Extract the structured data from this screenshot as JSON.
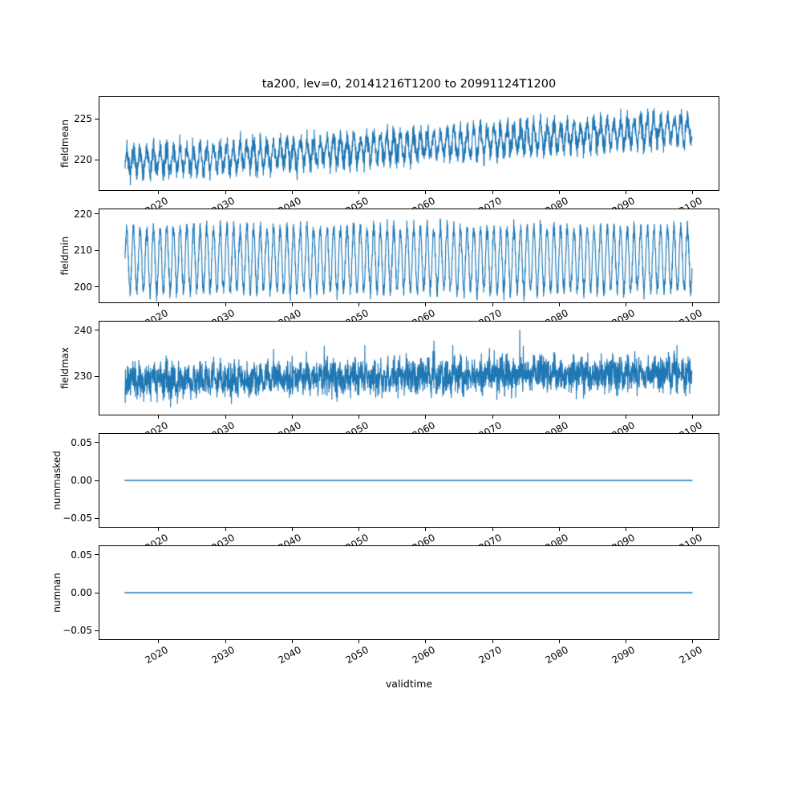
{
  "title": "ta200, lev=0, 20141216T1200 to 20991124T1200",
  "line_color": "#1f77b4",
  "axes_color": "#000000",
  "x_axis": {
    "label": "validtime",
    "xlim": [
      2011,
      2104
    ],
    "tick_values": [
      2020,
      2030,
      2040,
      2050,
      2060,
      2070,
      2080,
      2090,
      2100
    ],
    "tick_labels": [
      "2020",
      "2030",
      "2040",
      "2050",
      "2060",
      "2070",
      "2080",
      "2090",
      "2100"
    ],
    "tick_rotation_deg": 30
  },
  "chart_data": [
    {
      "type": "line",
      "ylabel": "fieldmean",
      "x_start": 2014.96,
      "x_end": 2099.9,
      "ylim": [
        216.2,
        227.8
      ],
      "ytick_values": [
        220,
        225
      ],
      "ytick_labels": [
        "220",
        "225"
      ],
      "approx": {
        "description": "dense noisy annual oscillation rising from ~219.5 K in 2015 to ~224 K in 2100, overall range ~217-227.5",
        "seed": 7,
        "points": 3200,
        "base": 219.6,
        "trend_per_year": 0.05,
        "season_amplitude": 1.5,
        "noise_sd": 0.7,
        "spike_prob": 0,
        "spike_amplitude": 0
      }
    },
    {
      "type": "line",
      "ylabel": "fieldmin",
      "x_start": 2014.96,
      "x_end": 2099.9,
      "ylim": [
        195.5,
        221.5
      ],
      "ytick_values": [
        200,
        210,
        220
      ],
      "ytick_labels": [
        "200",
        "210",
        "220"
      ],
      "approx": {
        "description": "strong regular annual oscillation between ~197 and ~219, no trend",
        "seed": 11,
        "points": 3200,
        "base": 207.5,
        "trend_per_year": 0,
        "season_amplitude": 8.5,
        "noise_sd": 1.2,
        "spike_prob": 0,
        "spike_amplitude": 0
      }
    },
    {
      "type": "line",
      "ylabel": "fieldmax",
      "x_start": 2014.96,
      "x_end": 2099.9,
      "ylim": [
        221.5,
        242
      ],
      "ytick_values": [
        230,
        240
      ],
      "ytick_labels": [
        "230",
        "240"
      ],
      "approx": {
        "description": "dense spiky band ~225-237 with upward spikes reaching ~242, slight upward trend",
        "seed": 13,
        "points": 3200,
        "base": 229.0,
        "trend_per_year": 0.02,
        "season_amplitude": 1.0,
        "noise_sd": 1.8,
        "spike_prob": 0.006,
        "spike_amplitude": 7
      }
    },
    {
      "type": "line",
      "ylabel": "nummasked",
      "x_start": 2014.96,
      "x_end": 2099.9,
      "ylim": [
        -0.0625,
        0.0625
      ],
      "ytick_values": [
        -0.05,
        0,
        0.05
      ],
      "ytick_labels": [
        "−0.05",
        "0.00",
        "0.05"
      ],
      "approx": {
        "description": "constant value 0.00 over the full time range",
        "seed": 1,
        "points": 2,
        "base": 0,
        "trend_per_year": 0,
        "season_amplitude": 0,
        "noise_sd": 0,
        "spike_prob": 0,
        "spike_amplitude": 0
      }
    },
    {
      "type": "line",
      "ylabel": "numnan",
      "x_start": 2014.96,
      "x_end": 2099.9,
      "ylim": [
        -0.0625,
        0.0625
      ],
      "ytick_values": [
        -0.05,
        0,
        0.05
      ],
      "ytick_labels": [
        "−0.05",
        "0.00",
        "0.05"
      ],
      "approx": {
        "description": "constant value 0.00 over the full time range",
        "seed": 2,
        "points": 2,
        "base": 0,
        "trend_per_year": 0,
        "season_amplitude": 0,
        "noise_sd": 0,
        "spike_prob": 0,
        "spike_amplitude": 0
      }
    }
  ]
}
